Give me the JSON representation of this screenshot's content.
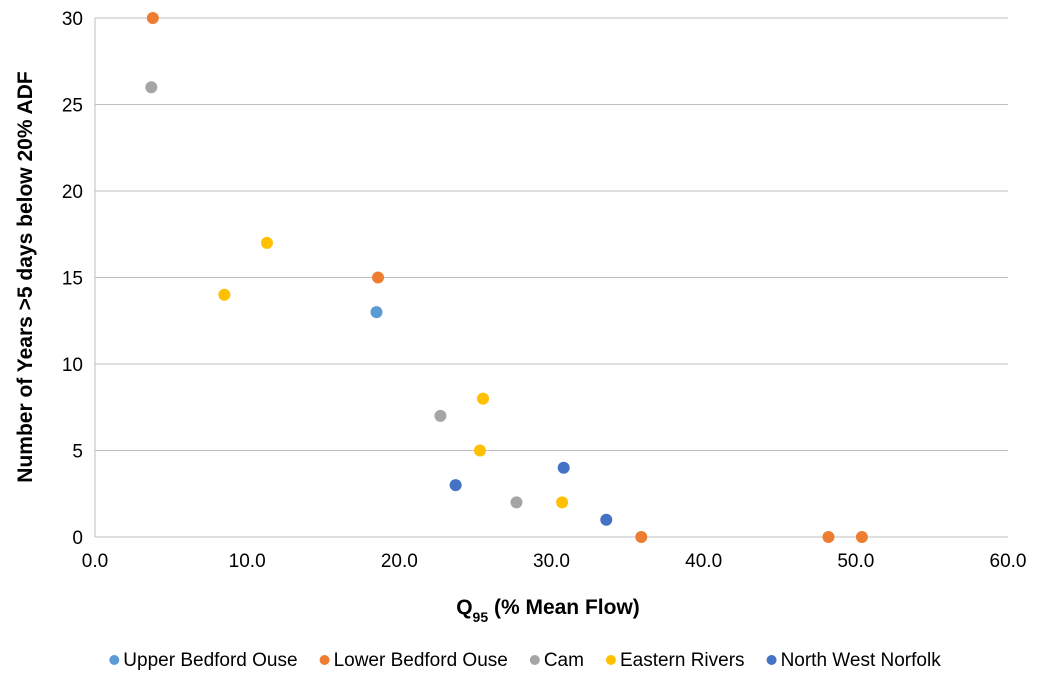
{
  "chart_data": {
    "type": "scatter",
    "xlabel_main": "Q",
    "xlabel_sub": "95",
    "xlabel_rest": " (% Mean Flow)",
    "ylabel": "Number of Years >5 days below 20% ADF",
    "xlim": [
      0,
      60
    ],
    "ylim": [
      0,
      30
    ],
    "x_ticks": [
      "0.0",
      "10.0",
      "20.0",
      "30.0",
      "40.0",
      "50.0",
      "60.0"
    ],
    "y_ticks": [
      "0",
      "5",
      "10",
      "15",
      "20",
      "25",
      "30"
    ],
    "grid": "horizontal",
    "legend_position": "bottom",
    "series": [
      {
        "name": "Upper Bedford Ouse",
        "color": "#5B9BD5",
        "points": [
          {
            "x": 18.5,
            "y": 13
          }
        ]
      },
      {
        "name": "Lower Bedford Ouse",
        "color": "#ED7D31",
        "points": [
          {
            "x": 3.8,
            "y": 30
          },
          {
            "x": 18.6,
            "y": 15
          },
          {
            "x": 35.9,
            "y": 0
          },
          {
            "x": 48.2,
            "y": 0
          },
          {
            "x": 50.4,
            "y": 0
          }
        ]
      },
      {
        "name": "Cam",
        "color": "#A5A5A5",
        "points": [
          {
            "x": 3.7,
            "y": 26
          },
          {
            "x": 22.7,
            "y": 7
          },
          {
            "x": 27.7,
            "y": 2
          }
        ]
      },
      {
        "name": "Eastern Rivers",
        "color": "#FFC000",
        "points": [
          {
            "x": 8.5,
            "y": 14
          },
          {
            "x": 11.3,
            "y": 17
          },
          {
            "x": 25.5,
            "y": 8
          },
          {
            "x": 25.3,
            "y": 5
          },
          {
            "x": 30.7,
            "y": 2
          }
        ]
      },
      {
        "name": "North West Norfolk",
        "color": "#4472C4",
        "points": [
          {
            "x": 23.7,
            "y": 3
          },
          {
            "x": 30.8,
            "y": 4
          },
          {
            "x": 33.6,
            "y": 1
          }
        ]
      }
    ]
  }
}
